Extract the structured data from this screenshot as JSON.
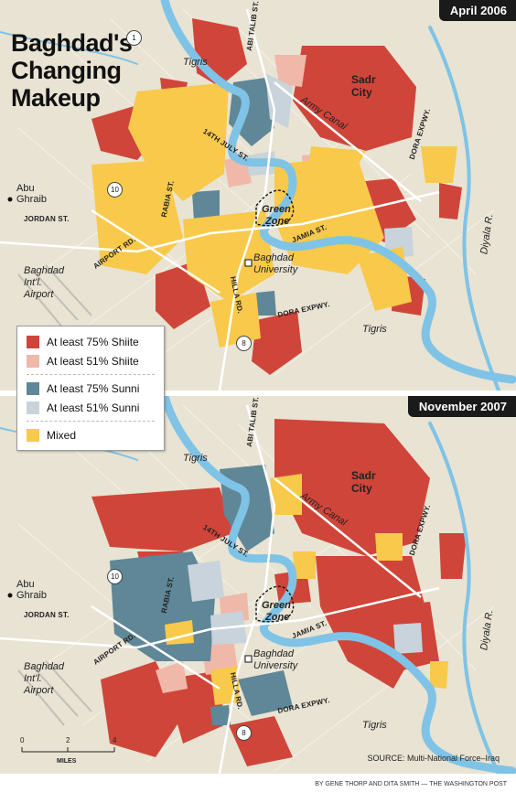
{
  "title_lines": [
    "Baghdad's",
    "Changing",
    "Makeup"
  ],
  "panels": [
    {
      "date": "April 2006"
    },
    {
      "date": "November 2007"
    }
  ],
  "labels": {
    "tigris": "Tigris",
    "sadr": "Sadr",
    "city": "City",
    "army_canal": "Army Canal",
    "green": "Green",
    "zone": "Zone",
    "abu": "Abu",
    "ghraib": "Ghraib",
    "jordan_st": "JORDAN ST.",
    "airport_rd": "AIRPORT RD.",
    "baghdad": "Baghdad",
    "intl": "Int'l.",
    "airport": "Airport",
    "university": "University",
    "rabia_st": "RABIA ST.",
    "fourteenth_july": "14TH JULY ST.",
    "abitalib": "ABI TALIB ST.",
    "dora_expwy": "DORA EXPWY.",
    "jamia_st": "JAMIA ST.",
    "hilla_rd": "HILLA RD.",
    "diyala": "Diyala R.",
    "route1": "1",
    "route10": "10",
    "route8": "8"
  },
  "legend": [
    {
      "label": "At least 75% Shiite",
      "color": "#d0453a"
    },
    {
      "label": "At least 51% Shiite",
      "color": "#f0b8a8"
    },
    {
      "label": "At least 75% Sunni",
      "color": "#5f8797"
    },
    {
      "label": "At least 51% Sunni",
      "color": "#c8d3db"
    },
    {
      "label": "Mixed",
      "color": "#f8c94a"
    }
  ],
  "scale": {
    "ticks": [
      "0",
      "2",
      "4"
    ],
    "unit": "MILES"
  },
  "source": "SOURCE: Multi-National Force–Iraq",
  "credit": "BY GENE THORP AND DITA SMITH — THE WASHINGTON POST",
  "colors": {
    "background": "#e8e3d3",
    "river": "#7fc3e6",
    "road": "#ffffff",
    "shiite75": "#d0453a",
    "shiite51": "#f0b8a8",
    "sunni75": "#5f8797",
    "sunni51": "#c8d3db",
    "mixed": "#f8c94a"
  }
}
